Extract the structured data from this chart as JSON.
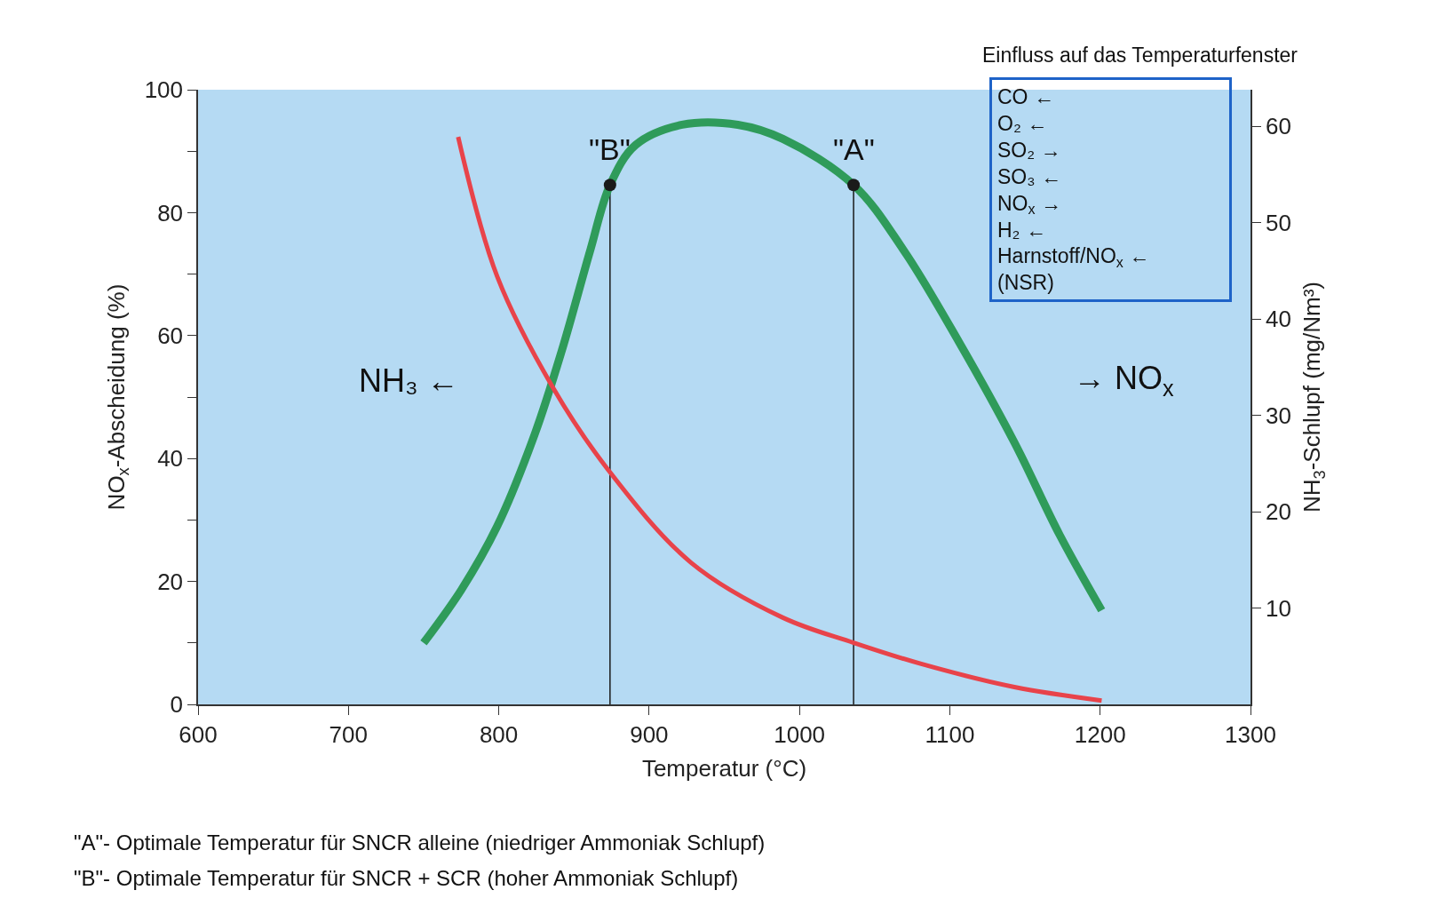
{
  "chart_data": {
    "type": "line",
    "xlabel": "Temperatur (°C)",
    "ylabel": "NO$_{x}$-Abscheidung (%)",
    "y2label": "NH$_{3}$-Schlupf (mg/Nm³)",
    "xlim": [
      600,
      1300
    ],
    "xticks": [
      600,
      700,
      800,
      900,
      1000,
      1100,
      1200,
      1300
    ],
    "ylim": [
      0,
      100
    ],
    "yticks": [
      0,
      {
        "value": 10,
        "label": null
      },
      20,
      {
        "value": 30,
        "label": null
      },
      40,
      {
        "value": 50,
        "label": null
      },
      60,
      {
        "value": 70,
        "label": null
      },
      80,
      {
        "value": 90,
        "label": null
      },
      100
    ],
    "y2lim": [
      0,
      63.8
    ],
    "y2ticks": [
      10,
      20,
      30,
      40,
      50,
      60
    ],
    "grid": false,
    "marker": "none",
    "line_style": "solid",
    "series": [
      {
        "color": "#2f9b5a",
        "x": [
          750,
          775,
          799,
          824,
          842,
          861,
          874,
          891,
          922,
          959,
          989,
          1036,
          1069,
          1106,
          1143,
          1173,
          1201
        ],
        "values": [
          10,
          18.6,
          29,
          44,
          57.6,
          74,
          84.5,
          91,
          94.3,
          94.3,
          92,
          84.5,
          74,
          59,
          42.6,
          27.6,
          15.3
        ]
      },
      {
        "color": "#e8434a",
        "axis": "y2",
        "x": [
          773,
          799,
          836,
          873,
          928,
          989,
          1036,
          1081,
          1143,
          1201
        ],
        "values": [
          58.9,
          44.4,
          32.9,
          24.3,
          14.7,
          9.0,
          6.4,
          4.2,
          1.8,
          0.4
        ]
      },
      {
        "color": "#1a1a1a",
        "x": [
          874,
          874
        ],
        "values": [
          0,
          84.5
        ]
      },
      {
        "color": "#1a1a1a",
        "x": [
          1036,
          1036
        ],
        "values": [
          0,
          84.5
        ]
      },
      {
        "type": "scatter",
        "marker": "circle",
        "color": "#1a1a1a",
        "x": [
          874,
          1036
        ],
        "values": [
          84.5,
          84.5
        ]
      }
    ],
    "annotations": [
      {
        "text": "\"B\"",
        "x": 874,
        "y": 84.5
      },
      {
        "text": "\"A\"",
        "x": 1036,
        "y": 84.5
      },
      "Einfluss auf das Temperaturfenster",
      "CO ←\nO₂ ←\nSO₂ →\nSO₃ ←\nNO$_{x}$ →\nH₂ ←\nHarnstoff/NO$_{x}$ ←\n(NSR)",
      "NH₃ ←",
      "→ NO$_{x}$",
      "\"A\"- Optimale Temperatur für SNCR alleine (niedriger Ammoniak Schlupf)",
      "\"B\"- Optimale Temperatur für SNCR + SCR (hoher Ammoniak Schlupf)"
    ]
  }
}
